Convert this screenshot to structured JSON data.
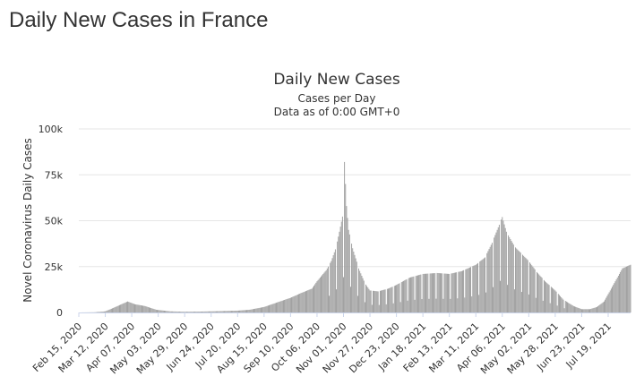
{
  "page": {
    "title": "Daily New Cases in France"
  },
  "chart_data": {
    "type": "bar",
    "title": "Daily New Cases",
    "subtitle_lines": [
      "Cases per Day",
      "Data as of 0:00 GMT+0"
    ],
    "ylabel": "Novel Coronavirus Daily Cases",
    "xlabel": "",
    "ylim": [
      0,
      100000
    ],
    "y_ticks": [
      0,
      25000,
      50000,
      75000,
      100000
    ],
    "y_tick_labels": [
      "0",
      "25k",
      "50k",
      "75k",
      "100k"
    ],
    "x_range": [
      "2020-02-15",
      "2021-08-10"
    ],
    "x_tick_labels": [
      "Feb 15, 2020",
      "Mar 12, 2020",
      "Apr 07, 2020",
      "May 03, 2020",
      "May 29, 2020",
      "Jun 24, 2020",
      "Jul 20, 2020",
      "Aug 15, 2020",
      "Sep 10, 2020",
      "Oct 06, 2020",
      "Nov 01, 2020",
      "Nov 27, 2020",
      "Dec 23, 2020",
      "Jan 18, 2021",
      "Feb 13, 2021",
      "Mar 11, 2021",
      "Apr 06, 2021",
      "May 02, 2021",
      "May 28, 2021",
      "Jun 23, 2021",
      "Jul 19, 2021"
    ],
    "grid": true,
    "bar_color": "#999999",
    "series": [
      {
        "x": [
          "2020-02-15",
          "2020-03-01",
          "2020-03-12",
          "2020-03-20",
          "2020-03-28",
          "2020-04-03",
          "2020-04-10",
          "2020-04-20",
          "2020-05-01",
          "2020-05-15",
          "2020-05-29",
          "2020-06-15",
          "2020-07-01",
          "2020-07-20",
          "2020-08-01",
          "2020-08-15",
          "2020-08-28",
          "2020-09-10",
          "2020-09-20",
          "2020-10-01",
          "2020-10-06",
          "2020-10-15",
          "2020-10-20",
          "2020-10-25",
          "2020-10-28",
          "2020-11-01",
          "2020-11-02",
          "2020-11-04",
          "2020-11-06",
          "2020-11-10",
          "2020-11-16",
          "2020-11-22",
          "2020-11-27",
          "2020-12-05",
          "2020-12-15",
          "2020-12-23",
          "2021-01-05",
          "2021-01-18",
          "2021-02-01",
          "2021-02-13",
          "2021-02-25",
          "2021-03-11",
          "2021-03-20",
          "2021-03-27",
          "2021-04-01",
          "2021-04-06",
          "2021-04-10",
          "2021-04-18",
          "2021-04-25",
          "2021-05-02",
          "2021-05-10",
          "2021-05-18",
          "2021-05-28",
          "2021-06-05",
          "2021-06-15",
          "2021-06-23",
          "2021-07-01",
          "2021-07-08",
          "2021-07-15",
          "2021-07-19",
          "2021-07-26",
          "2021-08-02",
          "2021-08-10"
        ],
        "values": [
          0,
          100,
          600,
          2500,
          4500,
          6000,
          4500,
          3500,
          1500,
          600,
          400,
          500,
          700,
          1000,
          1500,
          3000,
          5500,
          8000,
          10500,
          13000,
          17000,
          23000,
          28000,
          36000,
          44000,
          55000,
          82000,
          58000,
          45000,
          35000,
          24000,
          16000,
          12000,
          11500,
          13000,
          15000,
          19000,
          21000,
          21500,
          21000,
          22500,
          26000,
          30000,
          38000,
          45000,
          52000,
          44000,
          36000,
          32000,
          28000,
          22000,
          17000,
          12000,
          7000,
          3500,
          1800,
          1800,
          3000,
          6000,
          10000,
          17000,
          24000,
          26000
        ]
      }
    ]
  }
}
